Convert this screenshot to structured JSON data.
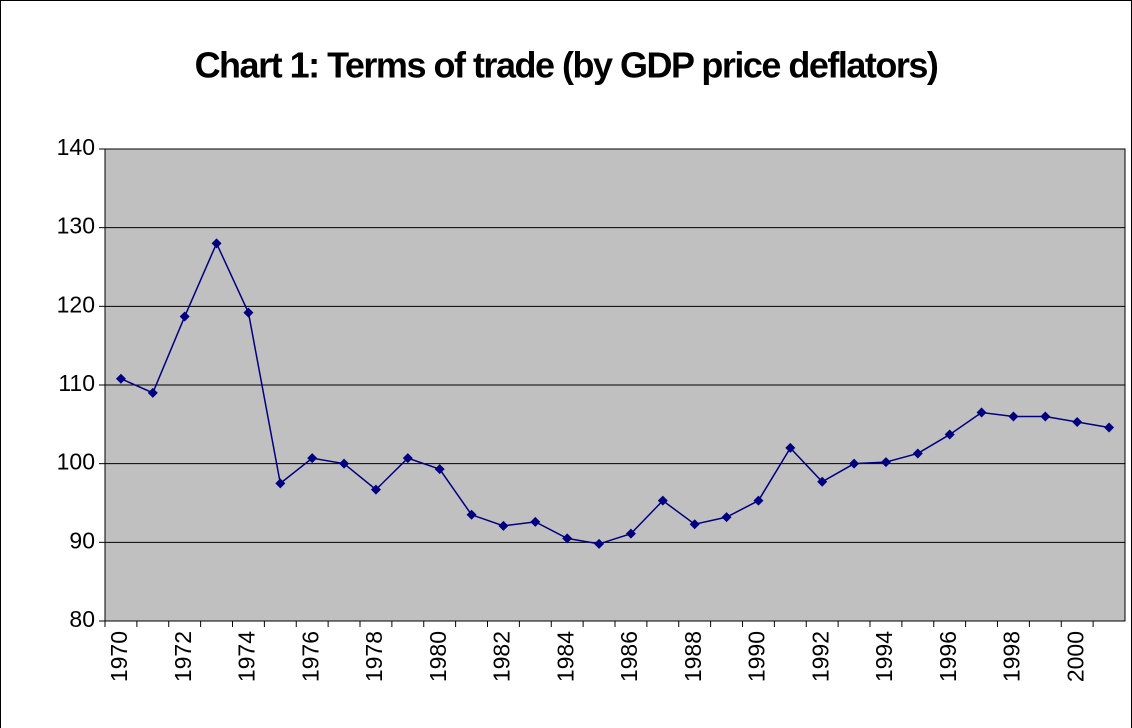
{
  "chart_data": {
    "type": "line",
    "title": "Chart 1: Terms of trade (by GDP price deflators)",
    "categories": [
      "1970",
      null,
      "1972",
      null,
      "1974",
      null,
      "1976",
      null,
      "1978",
      null,
      "1980",
      null,
      "1982",
      null,
      "1984",
      null,
      "1986",
      null,
      "1988",
      null,
      "1990",
      null,
      "1992",
      null,
      "1994",
      null,
      "1996",
      null,
      "1998",
      null,
      "2000",
      null
    ],
    "series": [
      {
        "name": "Terms of trade",
        "color": "#000080",
        "values": [
          110.8,
          109,
          118.7,
          128,
          119.2,
          97.5,
          100.7,
          100,
          96.7,
          100.7,
          99.3,
          93.5,
          92.1,
          92.6,
          90.5,
          89.8,
          91.1,
          95.3,
          92.3,
          93.2,
          95.3,
          102,
          97.7,
          100,
          100.2,
          101.3,
          103.7,
          106.5,
          106,
          106,
          105.3,
          104.6
        ]
      }
    ],
    "ylim": [
      80,
      140
    ],
    "yticks": [
      80,
      90,
      100,
      110,
      120,
      130,
      140
    ],
    "grid": true,
    "plot_background": "#c0c0c0"
  }
}
